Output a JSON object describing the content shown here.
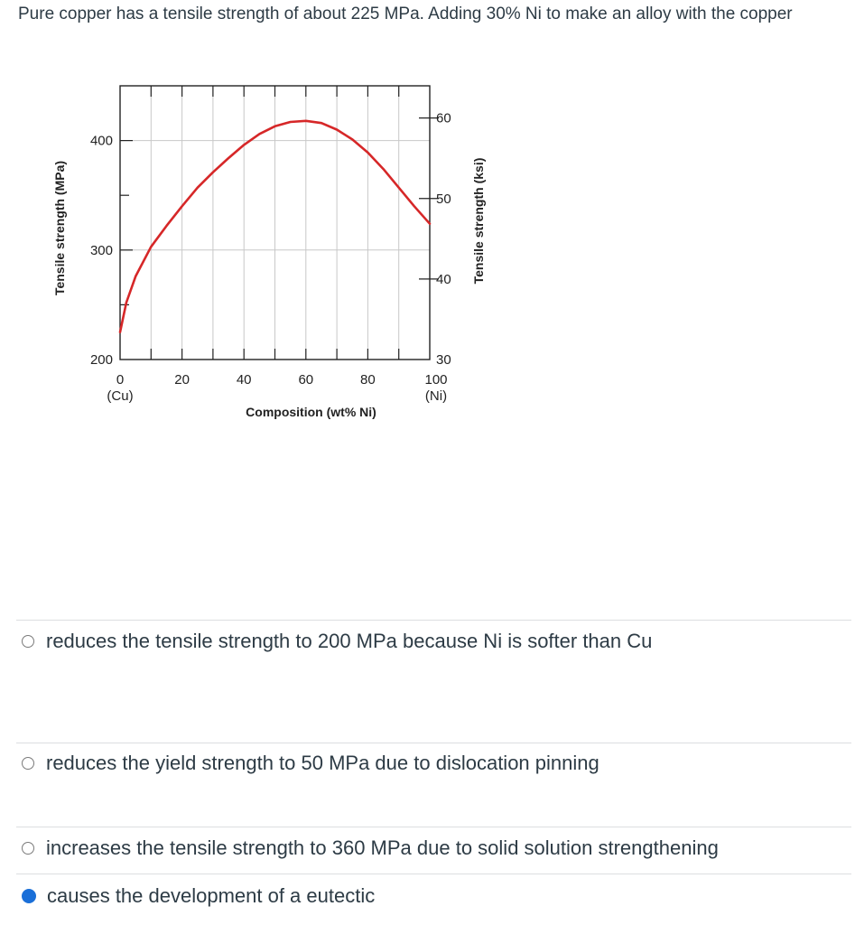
{
  "question": {
    "text": "Pure copper has a tensile strength of about 225 MPa. Adding 30% Ni to make an alloy with the copper"
  },
  "chart_data": {
    "type": "line",
    "title": "",
    "xlabel": "Composition (wt% Ni)",
    "ylabel": "Tensile strength (MPa)",
    "y2label": "Tensile strength (ksi)",
    "xlim": [
      0,
      100
    ],
    "ylim": [
      200,
      450
    ],
    "y2lim": [
      30,
      64
    ],
    "x_ticks": [
      "0",
      "20",
      "40",
      "60",
      "80",
      "100"
    ],
    "x_tick_values": [
      0,
      20,
      40,
      60,
      80,
      100
    ],
    "x_end_labels": {
      "left": "(Cu)",
      "right": "(Ni)"
    },
    "y_ticks": [
      "200",
      "300",
      "400"
    ],
    "y_tick_values": [
      200,
      300,
      400
    ],
    "y2_ticks": [
      "30",
      "40",
      "50",
      "60"
    ],
    "y2_tick_values": [
      30,
      40,
      50,
      60
    ],
    "grid": true,
    "line_color": "#d62728",
    "series": [
      {
        "x": [
          0,
          2,
          5,
          10,
          15,
          20,
          25,
          30,
          35,
          40,
          45,
          50,
          55,
          60,
          65,
          70,
          75,
          80,
          85,
          90,
          95,
          100
        ],
        "y": [
          225,
          252,
          276,
          303,
          322,
          340,
          357,
          371,
          384,
          396,
          406,
          413,
          417,
          418,
          416,
          410,
          401,
          389,
          374,
          357,
          340,
          324
        ]
      }
    ]
  },
  "answers": [
    {
      "label": "reduces the tensile strength to 200 MPa because Ni is softer than Cu",
      "selected": false
    },
    {
      "label": "reduces the yield strength to 50 MPa due to dislocation pinning",
      "selected": false
    },
    {
      "label": "increases the tensile strength to 360 MPa due to solid solution strengthening",
      "selected": false
    },
    {
      "label": "causes the development of a eutectic",
      "selected": true
    }
  ],
  "colors": {
    "text": "#2d3b45",
    "selected_radio": "#1a6fd8",
    "divider": "#dcdee0"
  }
}
